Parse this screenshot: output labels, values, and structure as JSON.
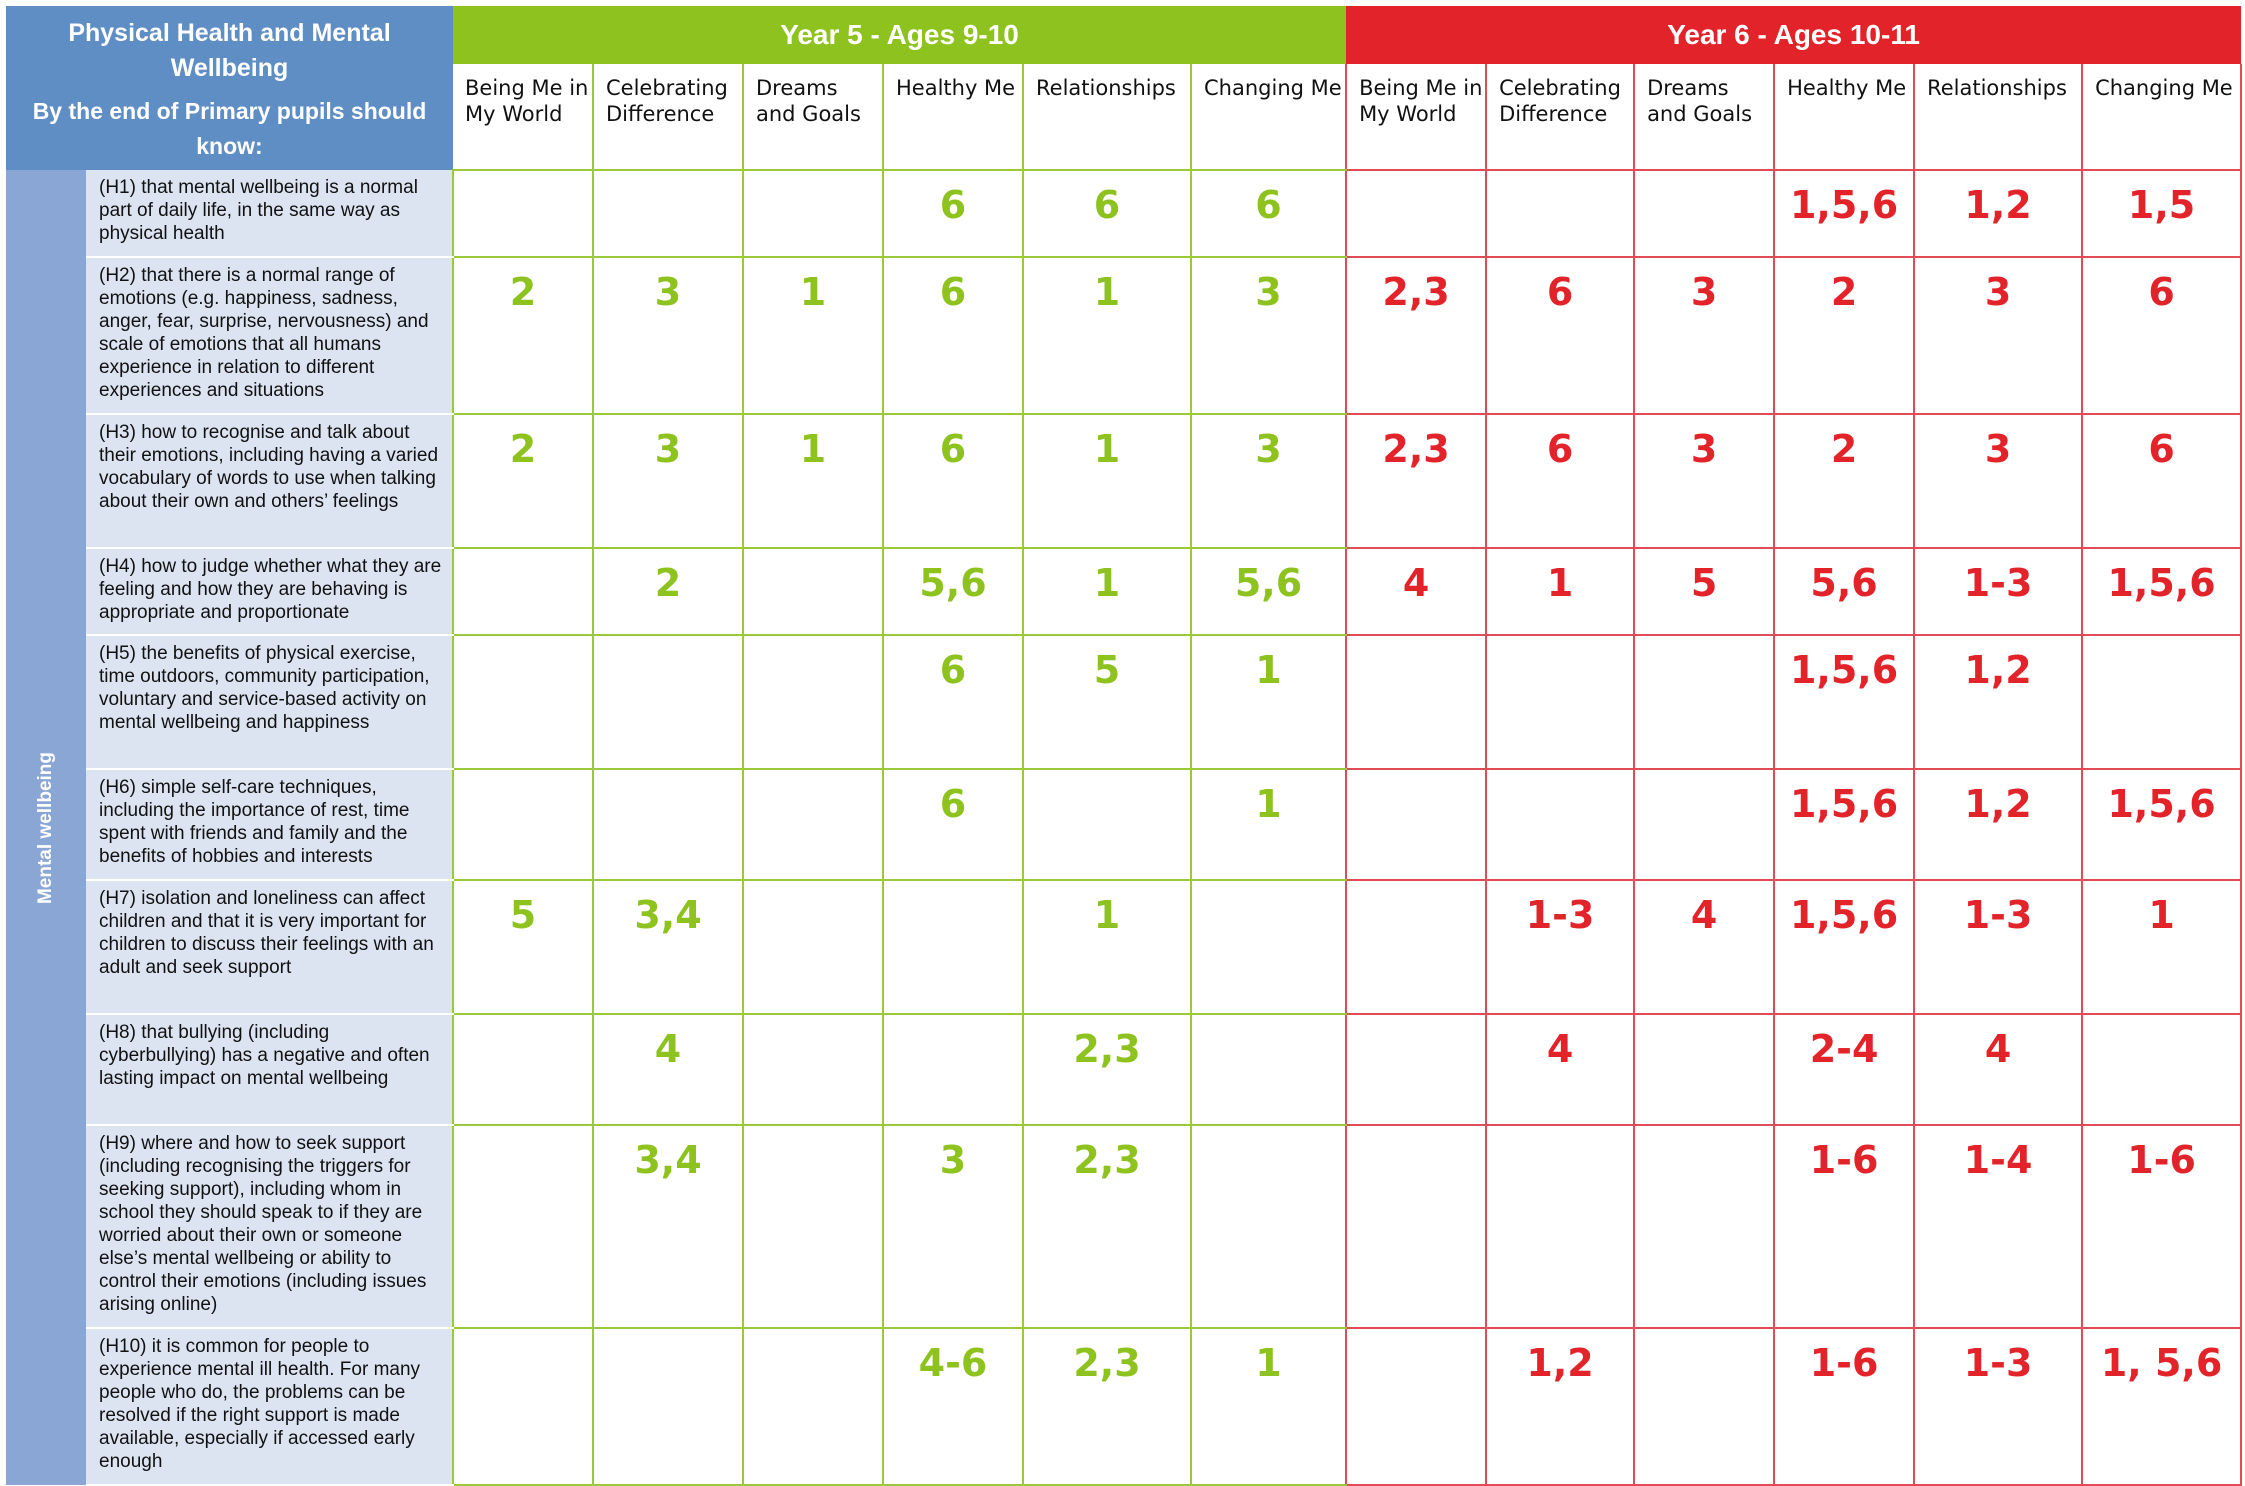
{
  "header": {
    "title": "Physical Health and Mental Wellbeing",
    "subtitle": "By the end of Primary pupils should know:"
  },
  "year5": {
    "title": "Year 5 - Ages 9-10",
    "color": "#8dc21f",
    "columns": [
      "Being Me in My World",
      "Celebrating Difference",
      "Dreams and Goals",
      "Healthy Me",
      "Relationships",
      "Changing Me"
    ]
  },
  "year6": {
    "title": "Year 6 - Ages 10-11",
    "color": "#e3232a",
    "columns": [
      "Being Me in My World",
      "Celebrating Difference",
      "Dreams and Goals",
      "Healthy Me",
      "Relationships",
      "Changing Me"
    ]
  },
  "side_label": "Mental wellbeing",
  "rows": [
    {
      "statement": "(H1) that mental wellbeing is a normal part of daily life, in the same way as physical health",
      "y5": [
        "",
        "",
        "",
        "6",
        "6",
        "6"
      ],
      "y6": [
        "",
        "",
        "",
        "1,5,6",
        "1,2",
        "1,5"
      ]
    },
    {
      "statement": "(H2) that there is a normal range of emotions (e.g. happiness, sadness, anger, fear, surprise, nervousness) and scale of emotions that all humans experience in relation to different experiences and situations",
      "y5": [
        "2",
        "3",
        "1",
        "6",
        "1",
        "3"
      ],
      "y6": [
        "2,3",
        "6",
        "3",
        "2",
        "3",
        "6"
      ]
    },
    {
      "statement": "(H3) how to recognise and talk about their emotions, including having a varied vocabulary of words to use when talking about their own and others’ feelings",
      "y5": [
        "2",
        "3",
        "1",
        "6",
        "1",
        "3"
      ],
      "y6": [
        "2,3",
        "6",
        "3",
        "2",
        "3",
        "6"
      ]
    },
    {
      "statement": "(H4) how to judge whether what they are feeling and how they are behaving is appropriate and proportionate",
      "y5": [
        "",
        "2",
        "",
        "5,6",
        "1",
        "5,6"
      ],
      "y6": [
        "4",
        "1",
        "5",
        "5,6",
        "1-3",
        "1,5,6"
      ]
    },
    {
      "statement": "(H5) the benefits of physical exercise, time outdoors, community participation, voluntary and service-based activity on mental wellbeing and happiness",
      "y5": [
        "",
        "",
        "",
        "6",
        "5",
        "1"
      ],
      "y6": [
        "",
        "",
        "",
        "1,5,6",
        "1,2",
        ""
      ]
    },
    {
      "statement": "(H6) simple self-care techniques, including the importance of rest, time spent with friends and family and the benefits of hobbies and interests",
      "y5": [
        "",
        "",
        "",
        "6",
        "",
        "1"
      ],
      "y6": [
        "",
        "",
        "",
        "1,5,6",
        "1,2",
        "1,5,6"
      ]
    },
    {
      "statement": "(H7) isolation and loneliness can affect children and that it is very important for children to discuss their feelings with an adult and seek support",
      "y5": [
        "5",
        "3,4",
        "",
        "",
        "1",
        ""
      ],
      "y6": [
        "",
        "1-3",
        "4",
        "1,5,6",
        "1-3",
        "1"
      ]
    },
    {
      "statement": "(H8) that bullying (including cyberbullying) has a negative and often lasting impact on mental wellbeing",
      "y5": [
        "",
        "4",
        "",
        "",
        "2,3",
        ""
      ],
      "y6": [
        "",
        "4",
        "",
        "2-4",
        "4",
        ""
      ]
    },
    {
      "statement": "(H9) where and how to seek support (including recognising the triggers for seeking support), including whom in school they should speak to if they are worried about their own or someone else’s mental wellbeing or ability to control their emotions (including issues arising online)",
      "y5": [
        "",
        "3,4",
        "",
        "3",
        "2,3",
        ""
      ],
      "y6": [
        "",
        "",
        "",
        "1-6",
        "1-4",
        "1-6"
      ]
    },
    {
      "statement": "(H10) it is common for people to experience mental ill health. For many people who do, the problems can be resolved if the right support is made available, especially if accessed early enough",
      "y5": [
        "",
        "",
        "",
        "4-6",
        "2,3",
        "1"
      ],
      "y6": [
        "",
        "1,2",
        "",
        "1-6",
        "1-3",
        "1, 5,6"
      ]
    }
  ]
}
